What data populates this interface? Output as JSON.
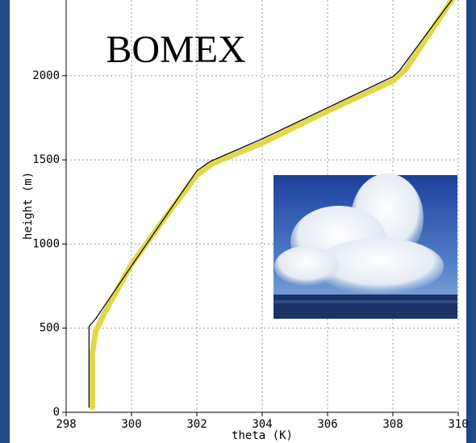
{
  "chart_data": {
    "type": "line",
    "annotation": "BOMEX",
    "xlabel": "theta (K)",
    "ylabel": "height (m)",
    "xlim": [
      298,
      310
    ],
    "ylim": [
      0,
      2450
    ],
    "xticks": [
      298,
      300,
      302,
      304,
      306,
      308,
      310
    ],
    "yticks": [
      0,
      500,
      1000,
      1500,
      2000
    ],
    "grid": true,
    "series": [
      {
        "color": "#e2d74a",
        "width": 7,
        "x": [
          298.8,
          298.8,
          298.9,
          299.2,
          300,
          301,
          302,
          302.5,
          304,
          306,
          308,
          308.4,
          309.8
        ],
        "values": [
          30,
          350,
          480,
          600,
          880,
          1150,
          1410,
          1480,
          1600,
          1790,
          1970,
          2040,
          2450
        ]
      },
      {
        "color": "#000000",
        "width": 1.2,
        "x": [
          298.7,
          298.7,
          298.9,
          300,
          302,
          302.4,
          304,
          306,
          308,
          308.2,
          309.8
        ],
        "values": [
          30,
          510,
          555,
          870,
          1435,
          1490,
          1625,
          1810,
          1995,
          2030,
          2450
        ]
      }
    ]
  }
}
